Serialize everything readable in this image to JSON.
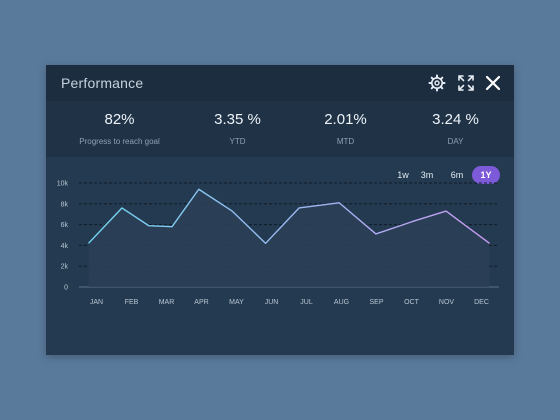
{
  "window": {
    "title": "Performance",
    "icons": {
      "settings": "gear-icon",
      "expand": "expand-icon",
      "close": "close-icon"
    }
  },
  "stats": [
    {
      "value": "82%",
      "label": "Progress to reach goal"
    },
    {
      "value": "3.35 %",
      "label": "YTD"
    },
    {
      "value": "2.01%",
      "label": "MTD"
    },
    {
      "value": "3.24 %",
      "label": "DAY"
    }
  ],
  "range": {
    "options": [
      "1w",
      "3m",
      "6m",
      "1Y"
    ],
    "selected": "1Y"
  },
  "colors": {
    "line_start": "#6fd6f2",
    "line_end": "#c99af0",
    "accent": "#7d5ad8"
  },
  "chart_data": {
    "type": "line",
    "categories": [
      "JAN",
      "FEB",
      "MAR",
      "APR",
      "MAY",
      "JUN",
      "JUL",
      "AUG",
      "SEP",
      "OCT",
      "NOV",
      "DEC"
    ],
    "x": [
      0,
      1,
      1.8,
      2.5,
      3.3,
      4.3,
      5.3,
      6.3,
      7.5,
      8.6,
      9.7,
      10.7,
      12
    ],
    "values": [
      4200,
      7600,
      5900,
      5800,
      9400,
      7300,
      4200,
      7600,
      8100,
      5100,
      6300,
      7300,
      4200
    ],
    "ylim": [
      0,
      10000
    ],
    "yticks": [
      0,
      2000,
      4000,
      6000,
      8000,
      10000
    ],
    "ytick_labels": [
      "0",
      "2k",
      "4k",
      "6k",
      "8k",
      "10k"
    ],
    "grid": true,
    "area_fill": true
  }
}
